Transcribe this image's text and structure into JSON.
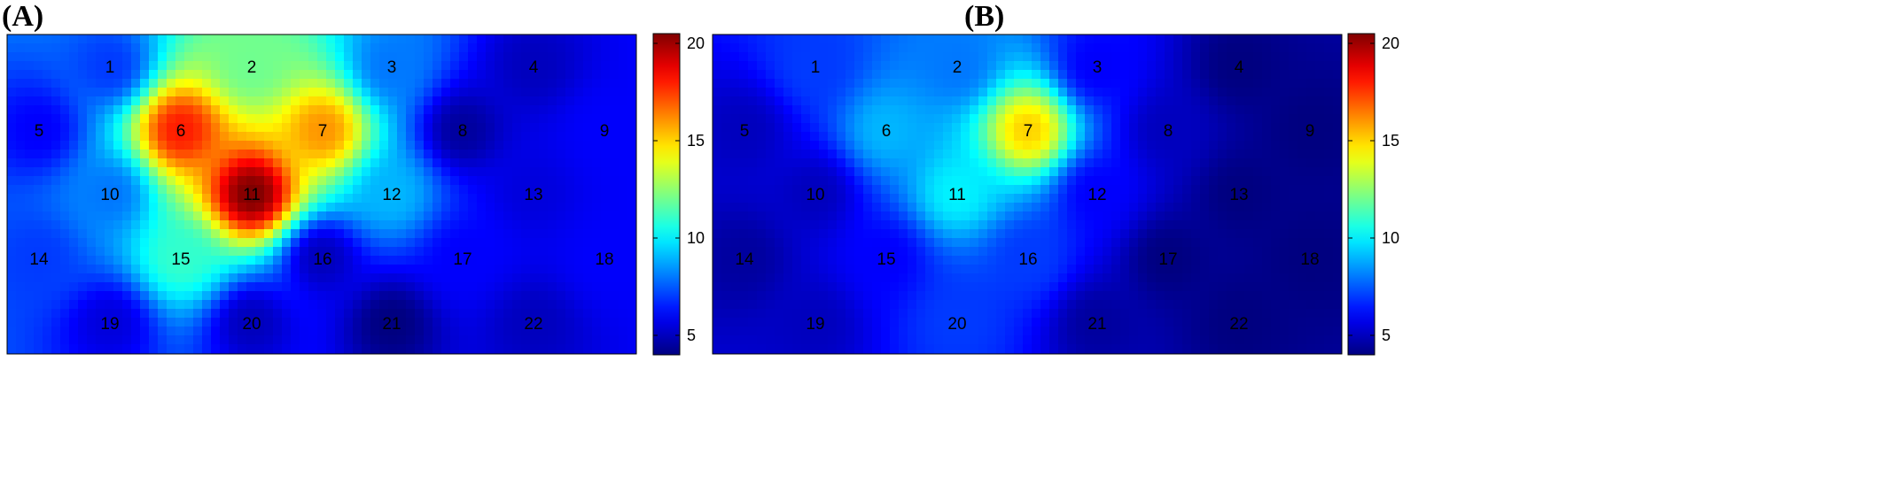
{
  "chart_data": [
    {
      "type": "heatmap",
      "panel_label": "(A)",
      "title": "",
      "xlabel": "",
      "ylabel": "",
      "colormap": "jet",
      "colorbar": {
        "range": [
          4,
          20.5
        ],
        "ticks": [
          "5",
          "10",
          "15",
          "20"
        ]
      },
      "channels": [
        "1",
        "2",
        "3",
        "4",
        "5",
        "6",
        "7",
        "8",
        "9",
        "10",
        "11",
        "12",
        "13",
        "14",
        "15",
        "16",
        "17",
        "18",
        "19",
        "20",
        "21",
        "22"
      ],
      "values": [
        7,
        12,
        8,
        5,
        6,
        18,
        16,
        4.5,
        6,
        8,
        20.5,
        9,
        5.5,
        7,
        11,
        5,
        6,
        6,
        5.5,
        5,
        4,
        5
      ]
    },
    {
      "type": "heatmap",
      "panel_label": "(B)",
      "title": "",
      "xlabel": "",
      "ylabel": "",
      "colormap": "jet",
      "colorbar": {
        "range": [
          4,
          20.5
        ],
        "ticks": [
          "5",
          "10",
          "15",
          "20"
        ]
      },
      "channels": [
        "1",
        "2",
        "3",
        "4",
        "5",
        "6",
        "7",
        "8",
        "9",
        "10",
        "11",
        "12",
        "13",
        "14",
        "15",
        "16",
        "17",
        "18",
        "19",
        "20",
        "21",
        "22"
      ],
      "values": [
        7,
        8,
        6,
        4,
        5,
        9,
        15,
        5,
        4,
        5,
        10,
        6,
        4,
        4.5,
        6,
        7,
        4,
        4,
        5,
        7,
        4.5,
        4
      ]
    }
  ]
}
